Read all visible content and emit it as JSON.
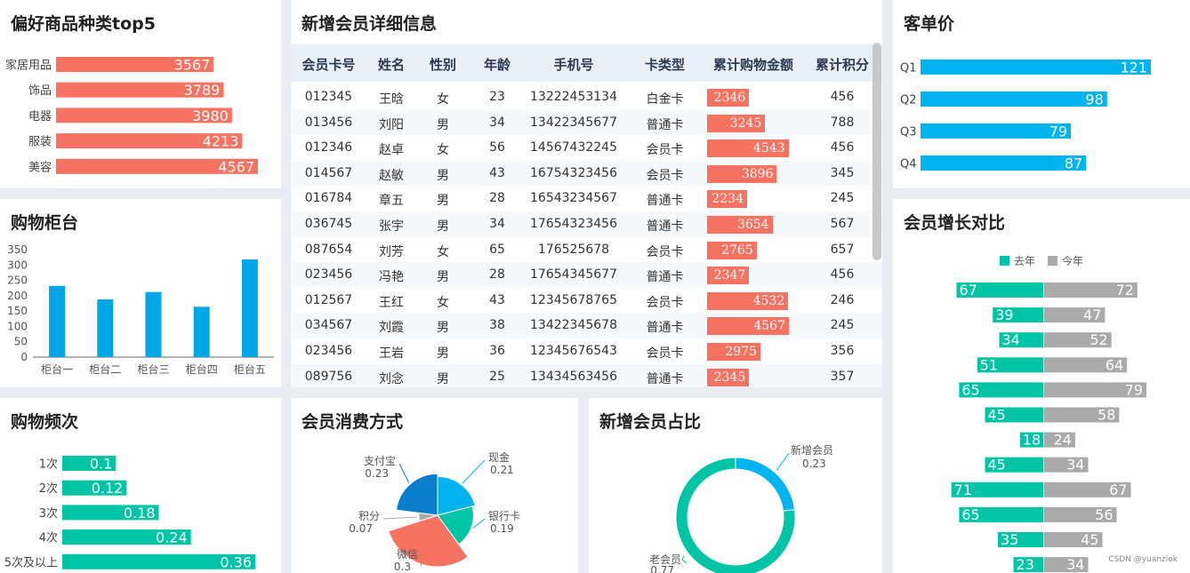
{
  "colors": {
    "coral": "#f87262",
    "blue": "#00a6e6",
    "cyan": "#00b4ef",
    "teal": "#00c4a6",
    "gray": "#aaaaaa"
  },
  "top5": {
    "title": "偏好商品种类top5",
    "chart_data": {
      "type": "bar",
      "orientation": "horizontal",
      "categories": [
        "家居用品",
        "饰品",
        "电器",
        "服装",
        "美容"
      ],
      "values": [
        3567,
        3789,
        3980,
        4213,
        4567
      ]
    }
  },
  "counter": {
    "title": "购物柜台",
    "chart_data": {
      "type": "bar",
      "categories": [
        "柜台一",
        "柜台二",
        "柜台三",
        "柜台四",
        "柜台五"
      ],
      "values": [
        232,
        188,
        212,
        164,
        318
      ],
      "yticks": [
        "0",
        "50",
        "100",
        "150",
        "200",
        "250",
        "300",
        "350"
      ],
      "ylim": [
        0,
        350
      ],
      "grid": false
    }
  },
  "freq": {
    "title": "购物频次",
    "chart_data": {
      "type": "bar",
      "orientation": "horizontal",
      "categories": [
        "1次",
        "2次",
        "3次",
        "4次",
        "5次及以上"
      ],
      "values": [
        0.1,
        0.12,
        0.18,
        0.24,
        0.36
      ]
    }
  },
  "members": {
    "title": "新增会员详细信息",
    "headers": [
      "会员卡号",
      "姓名",
      "性别",
      "年龄",
      "手机号",
      "卡类型",
      "累计购物金额",
      "累计积分"
    ],
    "rows": [
      {
        "id": "012345",
        "name": "王晗",
        "sex": "女",
        "age": "23",
        "phone": "13222453134",
        "card": "白金卡",
        "amount": 2346,
        "points": "456"
      },
      {
        "id": "013456",
        "name": "刘阳",
        "sex": "男",
        "age": "34",
        "phone": "13422345677",
        "card": "普通卡",
        "amount": 3245,
        "points": "788"
      },
      {
        "id": "012346",
        "name": "赵卓",
        "sex": "女",
        "age": "56",
        "phone": "14567432245",
        "card": "会员卡",
        "amount": 4543,
        "points": "456"
      },
      {
        "id": "014567",
        "name": "赵敏",
        "sex": "男",
        "age": "43",
        "phone": "16754323456",
        "card": "会员卡",
        "amount": 3896,
        "points": "345"
      },
      {
        "id": "016784",
        "name": "章五",
        "sex": "男",
        "age": "28",
        "phone": "16543234567",
        "card": "普通卡",
        "amount": 2234,
        "points": "245"
      },
      {
        "id": "036745",
        "name": "张宇",
        "sex": "男",
        "age": "34",
        "phone": "17654323456",
        "card": "普通卡",
        "amount": 3654,
        "points": "567"
      },
      {
        "id": "087654",
        "name": "刘芳",
        "sex": "女",
        "age": "65",
        "phone": "176525678",
        "card": "会员卡",
        "amount": 2765,
        "points": "657"
      },
      {
        "id": "023456",
        "name": "冯艳",
        "sex": "男",
        "age": "28",
        "phone": "17654345677",
        "card": "普通卡",
        "amount": 2347,
        "points": "456"
      },
      {
        "id": "012567",
        "name": "王红",
        "sex": "女",
        "age": "43",
        "phone": "12345678765",
        "card": "会员卡",
        "amount": 4532,
        "points": "246"
      },
      {
        "id": "034567",
        "name": "刘霞",
        "sex": "男",
        "age": "38",
        "phone": "13422345678",
        "card": "普通卡",
        "amount": 4567,
        "points": "245"
      },
      {
        "id": "023456",
        "name": "王岩",
        "sex": "男",
        "age": "36",
        "phone": "12345676543",
        "card": "会员卡",
        "amount": 2975,
        "points": "356"
      },
      {
        "id": "089756",
        "name": "刘念",
        "sex": "男",
        "age": "25",
        "phone": "13434563456",
        "card": "普通卡",
        "amount": 2345,
        "points": "357"
      }
    ]
  },
  "payment": {
    "title": "会员消费方式",
    "chart_data": {
      "type": "pie",
      "rose": true,
      "slices": [
        {
          "name": "现金",
          "value": 0.21,
          "color": "#00b4ef"
        },
        {
          "name": "银行卡",
          "value": 0.19,
          "color": "#00c4a6"
        },
        {
          "name": "微信",
          "value": 0.3,
          "color": "#f87262"
        },
        {
          "name": "积分",
          "value": 0.07,
          "color": "#aaaaaa"
        },
        {
          "name": "支付宝",
          "value": 0.23,
          "color": "#0b7fcc"
        }
      ]
    }
  },
  "newRatio": {
    "title": "新增会员占比",
    "chart_data": {
      "type": "pie",
      "donut": true,
      "slices": [
        {
          "name": "新增会员",
          "value": 0.23,
          "color": "#00b4ef"
        },
        {
          "name": "老会员",
          "value": 0.77,
          "color": "#00c4a6"
        }
      ]
    }
  },
  "aov": {
    "title": "客单价",
    "chart_data": {
      "type": "bar",
      "orientation": "horizontal",
      "categories": [
        "Q1",
        "Q2",
        "Q3",
        "Q4"
      ],
      "values": [
        121,
        98,
        79,
        87
      ]
    }
  },
  "growth": {
    "title": "会员增长对比",
    "chart_data": {
      "type": "bar",
      "orientation": "horizontal",
      "butterfly": true,
      "legend": "top",
      "series": [
        {
          "name": "去年",
          "color": "#00c4a6",
          "values": [
            67,
            39,
            34,
            51,
            65,
            45,
            18,
            45,
            71,
            65,
            35,
            23
          ]
        },
        {
          "name": "今年",
          "color": "#aaaaaa",
          "values": [
            72,
            47,
            52,
            64,
            79,
            58,
            24,
            34,
            67,
            56,
            45,
            34
          ]
        }
      ]
    }
  },
  "watermark": "CSDN @yuanziok"
}
